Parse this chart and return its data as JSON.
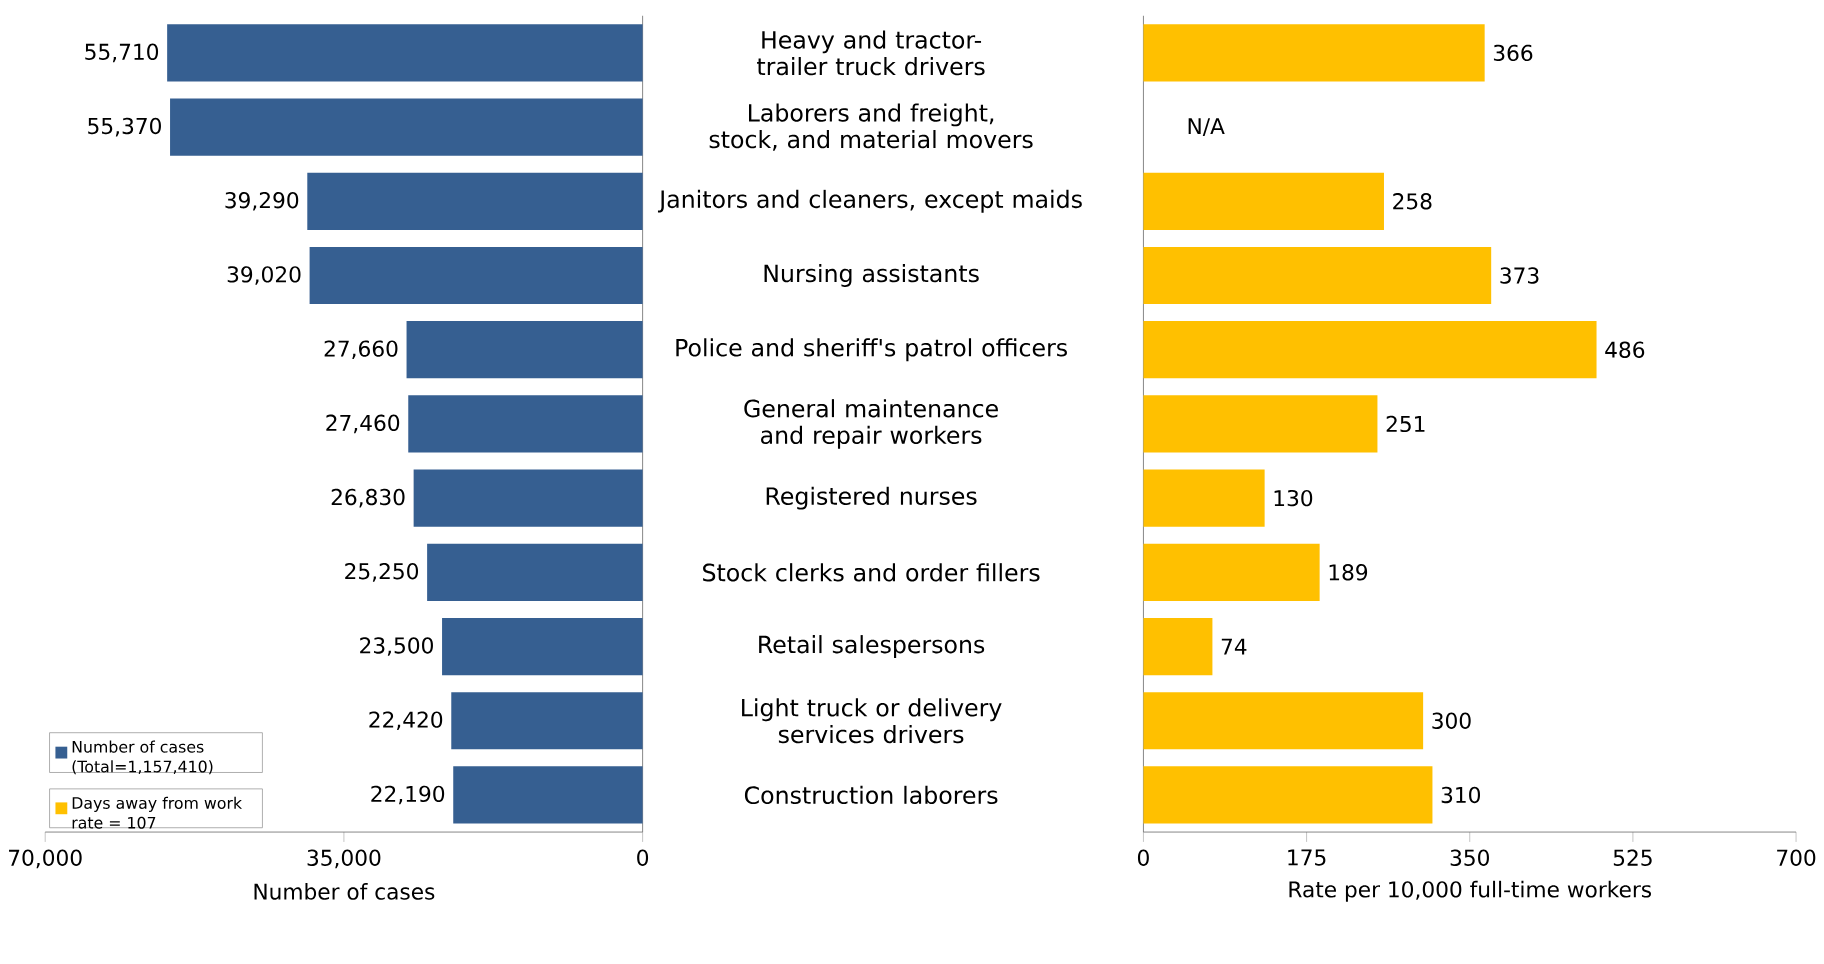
{
  "chart_data": [
    {
      "type": "bar",
      "orientation": "horizontal",
      "xlabel": "Number of cases",
      "legend": "bottom left",
      "categories": [
        "Heavy and tractor-trailer truck drivers",
        "Laborers and freight, stock, and material movers",
        "Janitors and cleaners, except maids",
        "Nursing assistants",
        "Police and sheriff's patrol officers",
        "General maintenance and repair workers",
        "Registered nurses",
        "Stock clerks and order fillers",
        "Retail salespersons",
        "Light truck or delivery services drivers",
        "Construction laborers"
      ],
      "xlim": [
        70000,
        0
      ],
      "xticks": [
        {
          "value": 70000,
          "label": "70,000"
        },
        {
          "value": 35000,
          "label": "35,000"
        },
        0
      ],
      "series": [
        {
          "name": "Number of cases (Total=1,157,410)",
          "color": "#365f91",
          "values": [
            55710,
            55370,
            39290,
            39020,
            27660,
            27460,
            26830,
            25250,
            23500,
            22420,
            22190
          ],
          "value_labels": [
            "55,710",
            "55,370",
            "39,290",
            "39,020",
            "27,660",
            "27,460",
            "26,830",
            "25,250",
            "23,500",
            "22,420",
            "22,190"
          ]
        }
      ]
    },
    {
      "type": "bar",
      "orientation": "horizontal",
      "xlabel": "Rate per 10,000 full-time workers",
      "legend": "bottom left",
      "categories": [
        null,
        null,
        null,
        null,
        null,
        null,
        null,
        null,
        null,
        null,
        null
      ],
      "xlim": [
        0,
        700
      ],
      "xticks": [
        0,
        175,
        350,
        525,
        700
      ],
      "series": [
        {
          "name": "Days away from work rate = 107",
          "color": "#ffc000",
          "values": [
            366,
            null,
            258,
            373,
            486,
            251,
            130,
            189,
            74,
            300,
            310
          ],
          "value_labels": [
            "366",
            "N/A",
            "258",
            "373",
            "486",
            "251",
            "130",
            "189",
            "74",
            "300",
            "310"
          ]
        }
      ]
    }
  ]
}
